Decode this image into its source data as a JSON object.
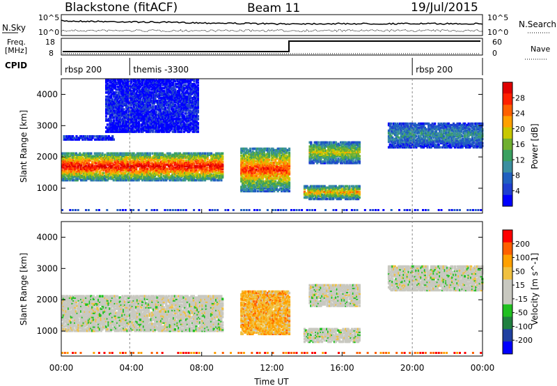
{
  "header": {
    "title": "Blackstone (fitACF)",
    "beam": "Beam 11",
    "date": "19/Jul/2015"
  },
  "top_panels": {
    "nsky_label": "N.Sky",
    "nsky_ticks": [
      "10^5",
      "10^0"
    ],
    "nsearch_label": "N.Search",
    "freq_label_1": "Freq.",
    "freq_label_2": "[MHz]",
    "freq_ticks": [
      "18",
      "8"
    ],
    "nave_ticks": [
      "60",
      "0"
    ],
    "nave_label": "Nave",
    "cpid_label": "CPID",
    "cpid_segments": [
      {
        "label": "rbsp 200",
        "start_hour": 0
      },
      {
        "label": "themis -3300",
        "start_hour": 3.9
      },
      {
        "label": "rbsp 200",
        "start_hour": 20.0
      }
    ]
  },
  "colors": {
    "power_scale": [
      "#0000ff",
      "#1f3fd0",
      "#2060c0",
      "#3b8fa0",
      "#3aa060",
      "#70b030",
      "#c8c800",
      "#ffa000",
      "#ff6000",
      "#ff2000",
      "#e00000"
    ],
    "velocity_scale": [
      "#ff0000",
      "#ff6000",
      "#ffa000",
      "#f0c040",
      "#c8c8c0",
      "#c8c8c0",
      "#20c020",
      "#208040",
      "#2040a0",
      "#0000ff"
    ]
  },
  "chart_data": [
    {
      "type": "heatmap",
      "name": "power",
      "ylabel": "Slant Range [km]",
      "xlabel": "Time UT",
      "x_ticks": [
        "00:00",
        "04:00",
        "08:00",
        "12:00",
        "16:00",
        "20:00",
        "00:00"
      ],
      "y_ticks": [
        1000,
        2000,
        3000,
        4000
      ],
      "ylim": [
        200,
        4500
      ],
      "colorbar_label": "Power [dB]",
      "colorbar_ticks": [
        4,
        8,
        12,
        16,
        20,
        24,
        28
      ],
      "bands": [
        {
          "t0": 0,
          "t1": 9.2,
          "r0": 1250,
          "r1": 2150,
          "level": 0.95
        },
        {
          "t0": 0.1,
          "t1": 3.0,
          "r0": 2550,
          "r1": 2700,
          "level": 0.15
        },
        {
          "t0": 2.5,
          "t1": 7.8,
          "r0": 2800,
          "r1": 4500,
          "level": 0.1
        },
        {
          "t0": 10.2,
          "t1": 13.0,
          "r0": 900,
          "r1": 2300,
          "level": 0.85
        },
        {
          "t0": 13.8,
          "t1": 17.0,
          "r0": 650,
          "r1": 1100,
          "level": 0.7
        },
        {
          "t0": 14.1,
          "t1": 17.0,
          "r0": 1800,
          "r1": 2500,
          "level": 0.6
        },
        {
          "t0": 18.6,
          "t1": 24.0,
          "r0": 2300,
          "r1": 3100,
          "level": 0.35
        }
      ]
    },
    {
      "type": "heatmap",
      "name": "velocity",
      "ylabel": "Slant Range [km]",
      "xlabel": "Time UT",
      "x_ticks": [
        "00:00",
        "04:00",
        "08:00",
        "12:00",
        "16:00",
        "20:00",
        "00:00"
      ],
      "y_ticks": [
        1000,
        2000,
        3000,
        4000
      ],
      "ylim": [
        200,
        4500
      ],
      "colorbar_label": "Velocity [m s^-1]",
      "colorbar_ticks": [
        200,
        100,
        50,
        15,
        -15,
        -50,
        -100,
        -200
      ],
      "bands": [
        {
          "t0": 0,
          "t1": 9.2,
          "r0": 1000,
          "r1": 2150,
          "level": 0.5
        },
        {
          "t0": 10.2,
          "t1": 13.0,
          "r0": 900,
          "r1": 2300,
          "level": 0.3
        },
        {
          "t0": 13.8,
          "t1": 17.0,
          "r0": 650,
          "r1": 1100,
          "level": 0.5
        },
        {
          "t0": 14.1,
          "t1": 17.0,
          "r0": 1800,
          "r1": 2500,
          "level": 0.5
        },
        {
          "t0": 18.6,
          "t1": 24.0,
          "r0": 2300,
          "r1": 3100,
          "level": 0.5
        }
      ]
    }
  ]
}
